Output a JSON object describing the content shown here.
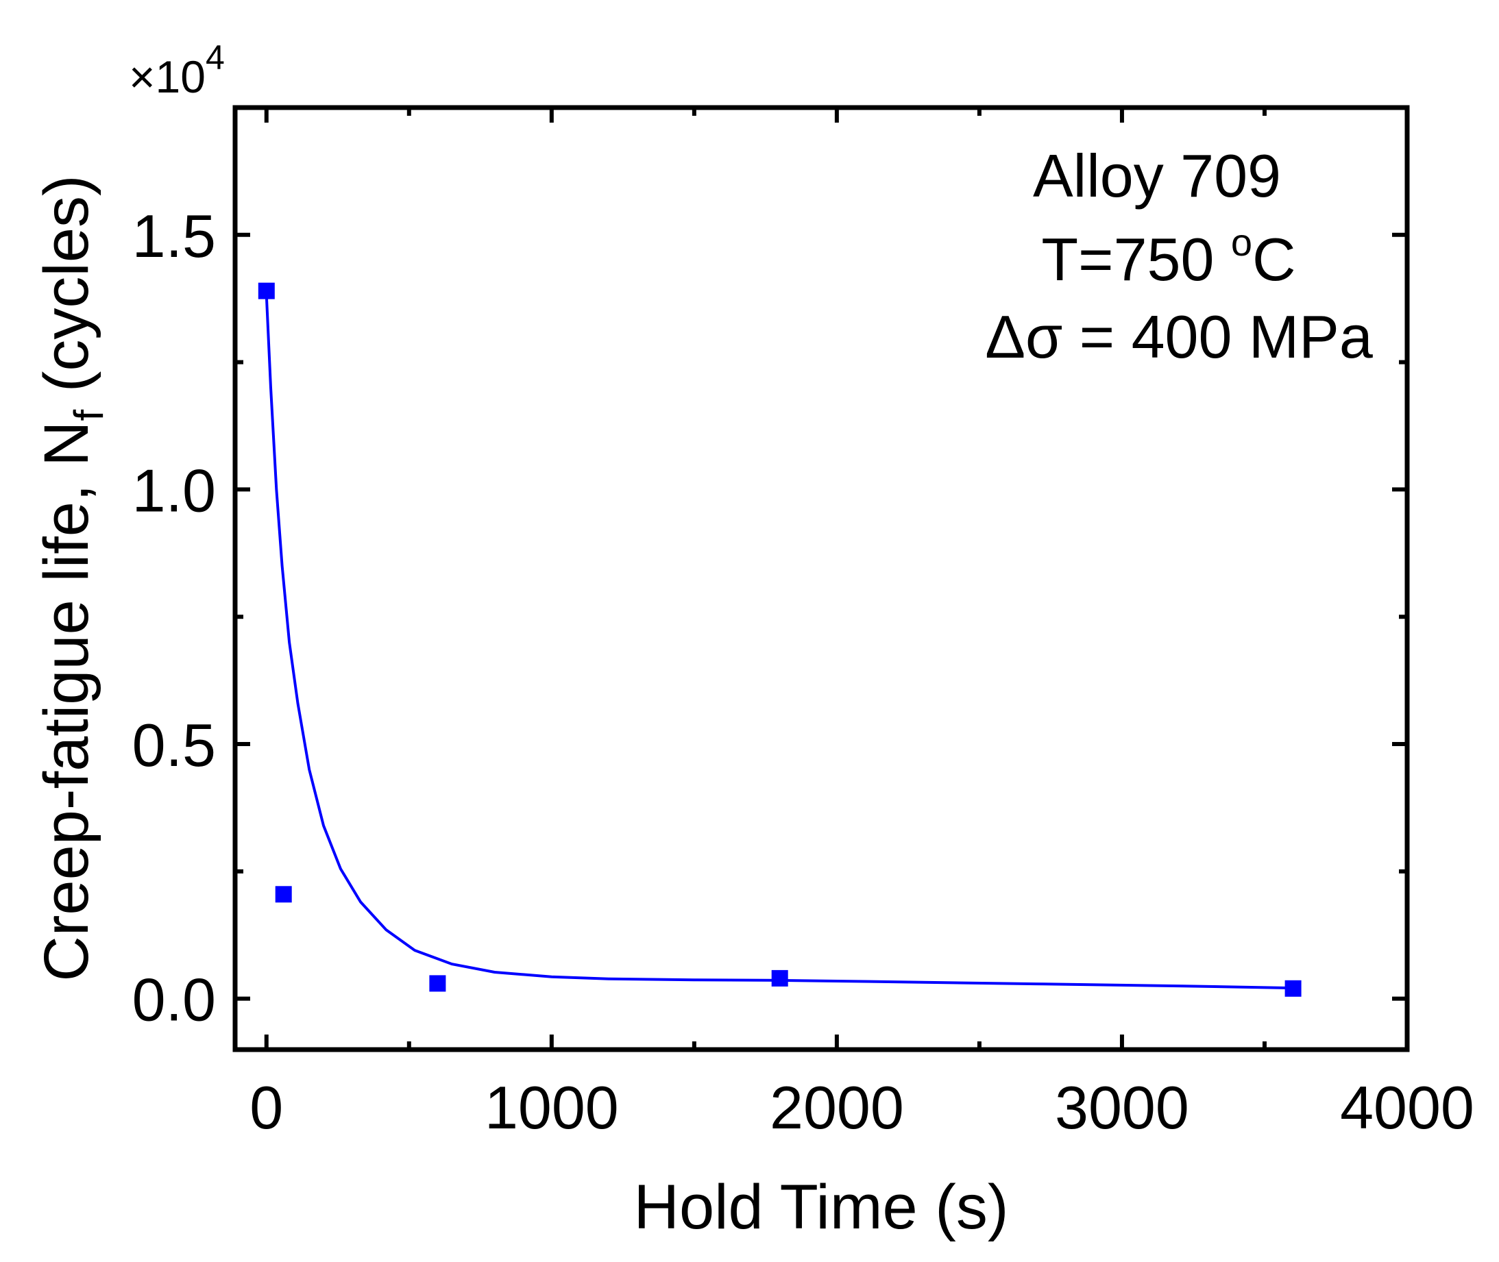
{
  "chart_data": {
    "type": "scatter",
    "xlabel": "Hold Time (s)",
    "ylabel_main": "Creep-fatigue life, N",
    "ylabel_sub": "f",
    "ylabel_tail": " (cycles)",
    "y_multiplier_prefix": "×10",
    "y_multiplier_exp": "4",
    "xlim": [
      -110,
      4000
    ],
    "ylim": [
      -0.1,
      1.75
    ],
    "xticks": [
      0,
      1000,
      2000,
      3000,
      4000
    ],
    "xtick_labels": [
      "0",
      "1000",
      "2000",
      "3000",
      "4000"
    ],
    "yticks": [
      0.0,
      0.5,
      1.0,
      1.5
    ],
    "ytick_labels": [
      "0.0",
      "0.5",
      "1.0",
      "1.5"
    ],
    "x_minor_step": 500,
    "y_minor_step": 0.25,
    "grid": false,
    "series": [
      {
        "marker": "square",
        "color": "#0000ff",
        "points": [
          {
            "x": 0,
            "y": 1.39
          },
          {
            "x": 60,
            "y": 0.205
          },
          {
            "x": 600,
            "y": 0.03
          },
          {
            "x": 1800,
            "y": 0.04
          },
          {
            "x": 3600,
            "y": 0.02
          }
        ]
      }
    ],
    "fit_curve": {
      "color": "#0000ff",
      "points": [
        {
          "x": 0,
          "y": 1.38
        },
        {
          "x": 15,
          "y": 1.2
        },
        {
          "x": 35,
          "y": 1.0
        },
        {
          "x": 55,
          "y": 0.85
        },
        {
          "x": 80,
          "y": 0.7
        },
        {
          "x": 110,
          "y": 0.58
        },
        {
          "x": 150,
          "y": 0.45
        },
        {
          "x": 200,
          "y": 0.34
        },
        {
          "x": 260,
          "y": 0.255
        },
        {
          "x": 330,
          "y": 0.19
        },
        {
          "x": 420,
          "y": 0.135
        },
        {
          "x": 520,
          "y": 0.095
        },
        {
          "x": 650,
          "y": 0.068
        },
        {
          "x": 800,
          "y": 0.052
        },
        {
          "x": 1000,
          "y": 0.043
        },
        {
          "x": 1200,
          "y": 0.039
        },
        {
          "x": 1500,
          "y": 0.037
        },
        {
          "x": 1800,
          "y": 0.036
        },
        {
          "x": 2200,
          "y": 0.033
        },
        {
          "x": 2700,
          "y": 0.029
        },
        {
          "x": 3200,
          "y": 0.025
        },
        {
          "x": 3600,
          "y": 0.021
        }
      ]
    },
    "annotation_lines": [
      "Alloy 709",
      "T=750 ",
      "Δσ = 400 MPa"
    ],
    "annotation_temp_sup": "o",
    "annotation_temp_unit": "C"
  }
}
